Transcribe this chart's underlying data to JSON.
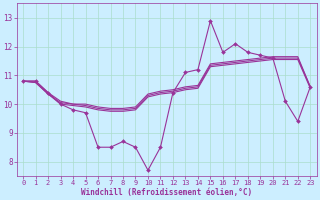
{
  "xlabel": "Windchill (Refroidissement éolien,°C)",
  "bg_color": "#cceeff",
  "grid_color": "#aaddcc",
  "line_color": "#993399",
  "xlim": [
    -0.5,
    23.5
  ],
  "ylim": [
    7.5,
    13.5
  ],
  "xticks": [
    0,
    1,
    2,
    3,
    4,
    5,
    6,
    7,
    8,
    9,
    10,
    11,
    12,
    13,
    14,
    15,
    16,
    17,
    18,
    19,
    20,
    21,
    22,
    23
  ],
  "yticks": [
    8,
    9,
    10,
    11,
    12,
    13
  ],
  "series": [
    [
      10.8,
      10.8,
      10.4,
      10.0,
      9.8,
      9.7,
      8.5,
      8.5,
      8.7,
      8.5,
      7.7,
      8.5,
      10.4,
      11.1,
      11.2,
      12.9,
      11.8,
      12.1,
      11.8,
      11.7,
      11.6,
      10.1,
      9.4,
      10.6
    ],
    [
      10.8,
      10.75,
      10.35,
      10.0,
      9.95,
      9.9,
      9.8,
      9.75,
      9.75,
      9.8,
      10.25,
      10.35,
      10.4,
      10.5,
      10.55,
      11.3,
      11.35,
      11.4,
      11.45,
      11.5,
      11.55,
      11.55,
      11.55,
      10.55
    ],
    [
      10.8,
      10.75,
      10.35,
      10.05,
      10.0,
      9.95,
      9.85,
      9.8,
      9.8,
      9.85,
      10.3,
      10.4,
      10.45,
      10.55,
      10.6,
      11.35,
      11.4,
      11.45,
      11.5,
      11.55,
      11.6,
      11.6,
      11.6,
      10.6
    ],
    [
      10.8,
      10.8,
      10.4,
      10.1,
      10.0,
      10.0,
      9.9,
      9.85,
      9.85,
      9.9,
      10.35,
      10.45,
      10.5,
      10.6,
      10.65,
      11.4,
      11.45,
      11.5,
      11.55,
      11.6,
      11.65,
      11.65,
      11.65,
      10.6
    ]
  ],
  "markers": [
    true,
    false,
    false,
    false
  ],
  "xlabel_fontsize": 5.5,
  "tick_fontsize": 5.0
}
